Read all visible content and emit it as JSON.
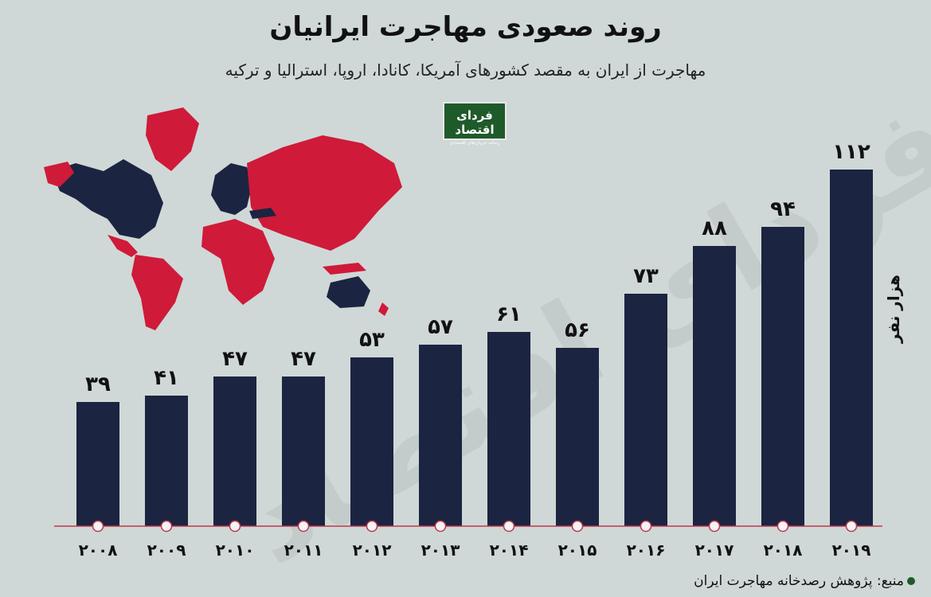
{
  "title": "روند صعودی مهاجرت ایرانیان",
  "subtitle": "مهاجرت از ایران به مقصد کشورهای آمریکا، کانادا، اروپا، استرالیا و ترکیه",
  "logo": {
    "name": "فردای اقتصاد",
    "tagline": "رسانه جریان‌های اقتصادی"
  },
  "watermark": "فردای اقتصاد",
  "source": "منبع: پژوهش رصدخانه مهاجرت ایران",
  "colors": {
    "background": "#cfd8d7",
    "bar": "#1b2440",
    "axis": "#c0354c",
    "map_highlight": "#cf1a39",
    "map_other": "#1b2440",
    "brand": "#1f5a2a"
  },
  "chart_data": {
    "type": "bar",
    "categories": [
      "۲۰۰۸",
      "۲۰۰۹",
      "۲۰۱۰",
      "۲۰۱۱",
      "۲۰۱۲",
      "۲۰۱۳",
      "۲۰۱۴",
      "۲۰۱۵",
      "۲۰۱۶",
      "۲۰۱۷",
      "۲۰۱۸",
      "۲۰۱۹"
    ],
    "values": [
      39,
      41,
      47,
      47,
      53,
      57,
      61,
      56,
      73,
      88,
      94,
      112
    ],
    "value_labels": [
      "۳۹",
      "۴۱",
      "۴۷",
      "۴۷",
      "۵۳",
      "۵۷",
      "۶۱",
      "۵۶",
      "۷۳",
      "۸۸",
      "۹۴",
      "۱۱۲"
    ],
    "ylabel": "هزار نفر",
    "ylim": [
      0,
      114
    ],
    "grid": false,
    "legend": "none"
  }
}
